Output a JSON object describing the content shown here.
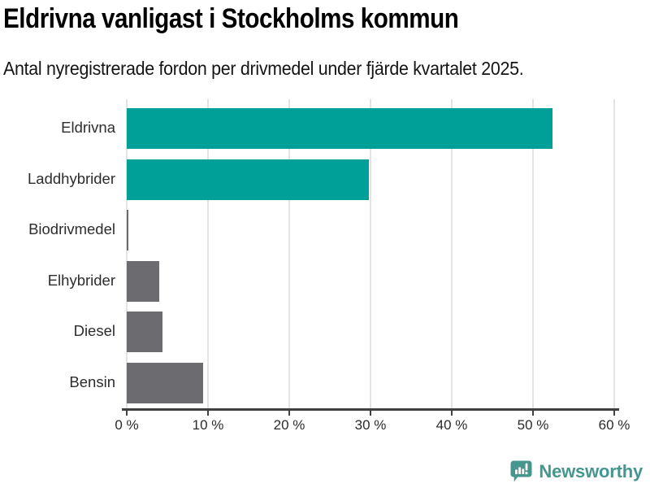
{
  "header": {
    "title": "Eldrivna vanligast i Stockholms kommun",
    "subtitle": "Antal nyregistrerade fordon per drivmedel under fjärde kvartalet 2025."
  },
  "chart_data": {
    "type": "bar",
    "orientation": "horizontal",
    "title": "Eldrivna vanligast i Stockholms kommun",
    "subtitle": "Antal nyregistrerade fordon per drivmedel under fjärde kvartalet 2025.",
    "categories": [
      "Eldrivna",
      "Laddhybrider",
      "Biodrivmedel",
      "Elhybrider",
      "Diesel",
      "Bensin"
    ],
    "values": [
      52.4,
      29.8,
      0.2,
      4.0,
      4.4,
      9.4
    ],
    "unit": "%",
    "bar_colors": [
      "#00a099",
      "#00a099",
      "#6b6b70",
      "#6b6b70",
      "#6b6b70",
      "#6b6b70"
    ],
    "highlight_color": "#00a099",
    "default_color": "#6b6b70",
    "xlabel": "",
    "ylabel": "",
    "xlim": [
      0,
      60
    ],
    "x_ticks": [
      0,
      10,
      20,
      30,
      40,
      50,
      60
    ],
    "x_tick_labels": [
      "0 %",
      "10 %",
      "20 %",
      "30 %",
      "40 %",
      "50 %",
      "60 %"
    ],
    "grid": true,
    "gridline_color": "#e3e3e3",
    "axis_color": "#404040",
    "legend": "none"
  },
  "footer": {
    "brand": "Newsworthy",
    "brand_color": "#45968f"
  }
}
